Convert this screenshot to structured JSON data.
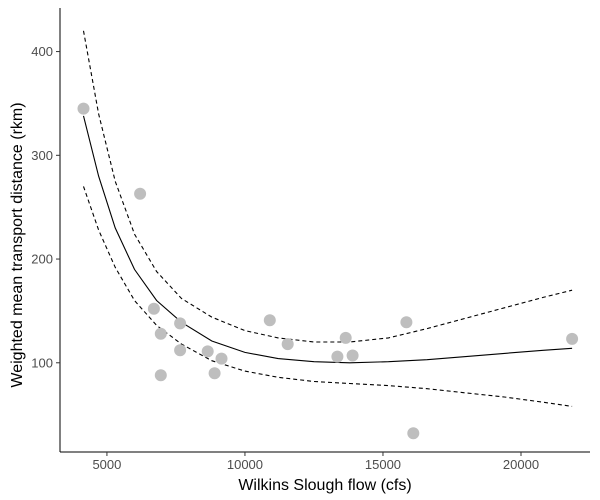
{
  "chart_data": {
    "type": "scatter",
    "title": "",
    "xlabel": "Wilkins Slough flow (cfs)",
    "ylabel": "Weighted mean transport distance (rkm)",
    "xlim": [
      3300,
      22500
    ],
    "ylim": [
      14,
      442
    ],
    "x_ticks": [
      5000,
      10000,
      15000,
      20000
    ],
    "x_tick_labels": [
      "5000",
      "10000",
      "15000",
      "20000"
    ],
    "y_ticks": [
      100,
      200,
      300,
      400
    ],
    "y_tick_labels": [
      "100",
      "200",
      "300",
      "400"
    ],
    "grid": false,
    "legend": "none",
    "point_color": "#bebebe",
    "line_color": "#000000",
    "points": [
      {
        "x": 4150,
        "y": 345
      },
      {
        "x": 6200,
        "y": 263
      },
      {
        "x": 6700,
        "y": 152
      },
      {
        "x": 6950,
        "y": 128
      },
      {
        "x": 6950,
        "y": 88
      },
      {
        "x": 7650,
        "y": 138
      },
      {
        "x": 7650,
        "y": 112
      },
      {
        "x": 8650,
        "y": 111
      },
      {
        "x": 8900,
        "y": 90
      },
      {
        "x": 9150,
        "y": 104
      },
      {
        "x": 10900,
        "y": 141
      },
      {
        "x": 11550,
        "y": 118
      },
      {
        "x": 13350,
        "y": 106
      },
      {
        "x": 13650,
        "y": 124
      },
      {
        "x": 13900,
        "y": 107
      },
      {
        "x": 15850,
        "y": 139
      },
      {
        "x": 16100,
        "y": 32
      },
      {
        "x": 21850,
        "y": 123
      }
    ],
    "series": [
      {
        "style": "solid",
        "x": [
          4150,
          4700,
          5300,
          6000,
          6800,
          7700,
          8800,
          10000,
          11200,
          12500,
          13800,
          15200,
          16600,
          18000,
          19400,
          20800,
          21850
        ],
        "y": [
          338,
          280,
          230,
          190,
          160,
          139,
          121,
          110,
          104,
          101,
          100,
          101,
          103,
          106,
          109,
          112,
          114
        ]
      },
      {
        "style": "dashed",
        "x": [
          4150,
          4700,
          5300,
          6000,
          6800,
          7700,
          8800,
          10000,
          11200,
          12500,
          13800,
          15200,
          16600,
          18000,
          19400,
          20800,
          21850
        ],
        "y": [
          420,
          340,
          275,
          224,
          188,
          162,
          144,
          131,
          124,
          120,
          120,
          124,
          133,
          143,
          153,
          163,
          170
        ]
      },
      {
        "style": "dashed",
        "x": [
          4150,
          4700,
          5300,
          6000,
          6800,
          7700,
          8800,
          10000,
          11200,
          12500,
          13800,
          15200,
          16600,
          18000,
          19400,
          20800,
          21850
        ],
        "y": [
          270,
          228,
          192,
          160,
          136,
          118,
          102,
          92,
          86,
          82,
          80,
          78,
          75,
          71,
          67,
          62,
          58
        ]
      }
    ]
  }
}
